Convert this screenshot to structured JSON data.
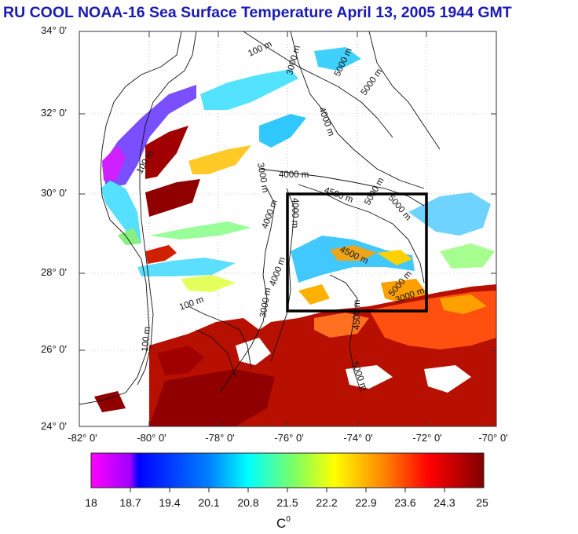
{
  "title": "RU COOL  NOAA-16 Sea Surface Temperature April 13, 2005 1944 GMT",
  "colorbar": {
    "unit": "C",
    "unit_sup": "0",
    "ticks": [
      "18",
      "18.7",
      "19.4",
      "20.1",
      "20.8",
      "21.5",
      "22.2",
      "22.9",
      "23.6",
      "24.3",
      "25"
    ],
    "range": [
      18,
      25
    ],
    "colors": [
      "#ff00ff",
      "#0000ff",
      "#00ffff",
      "#ffff00",
      "#ff0000",
      "#800000"
    ]
  },
  "map": {
    "lat_ticks": [
      "34° 0'",
      "32° 0'",
      "30° 0'",
      "28° 0'",
      "26° 0'",
      "24° 0'"
    ],
    "lon_ticks": [
      "-82° 0'",
      "-80° 0'",
      "-78° 0'",
      "-76° 0'",
      "-74° 0'",
      "-72° 0'",
      "-70° 0'"
    ],
    "lat_range": [
      24,
      34
    ],
    "lon_range": [
      -82,
      -70
    ],
    "study_box": {
      "lon": [
        -76,
        -72
      ],
      "lat": [
        27,
        30
      ]
    },
    "contour_labels": [
      "100 m",
      "3000 m",
      "4000 m",
      "4500 m",
      "5000 m"
    ]
  }
}
